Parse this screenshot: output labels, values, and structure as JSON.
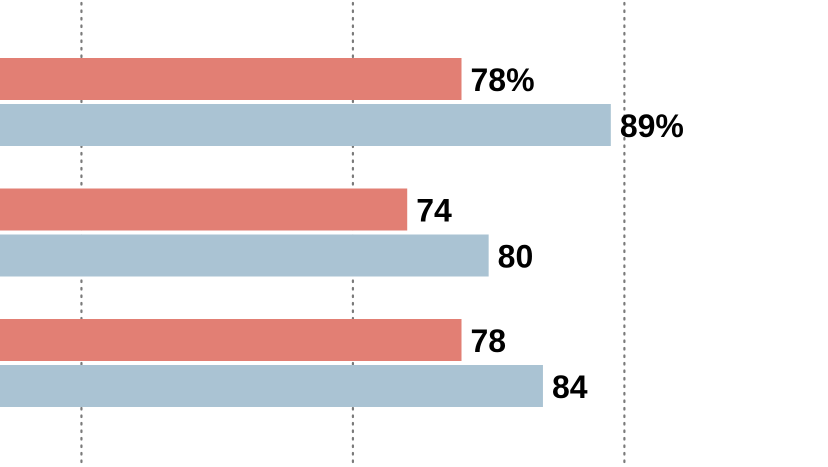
{
  "chart_data": {
    "type": "bar",
    "orientation": "horizontal",
    "categories": [
      "",
      "",
      ""
    ],
    "series": [
      {
        "color": "#e27f74",
        "values": [
          78,
          74,
          78
        ]
      },
      {
        "color": "#aac3d3",
        "values": [
          89,
          80,
          84
        ]
      }
    ],
    "value_labels": [
      [
        "78%",
        "89%"
      ],
      [
        "74",
        "80"
      ],
      [
        "78",
        "84"
      ]
    ],
    "xlim": [
      44,
      105
    ],
    "gridlines_at": [
      50,
      70,
      90
    ],
    "grid": true,
    "legend": "none",
    "title": "",
    "xlabel": "",
    "ylabel": ""
  }
}
